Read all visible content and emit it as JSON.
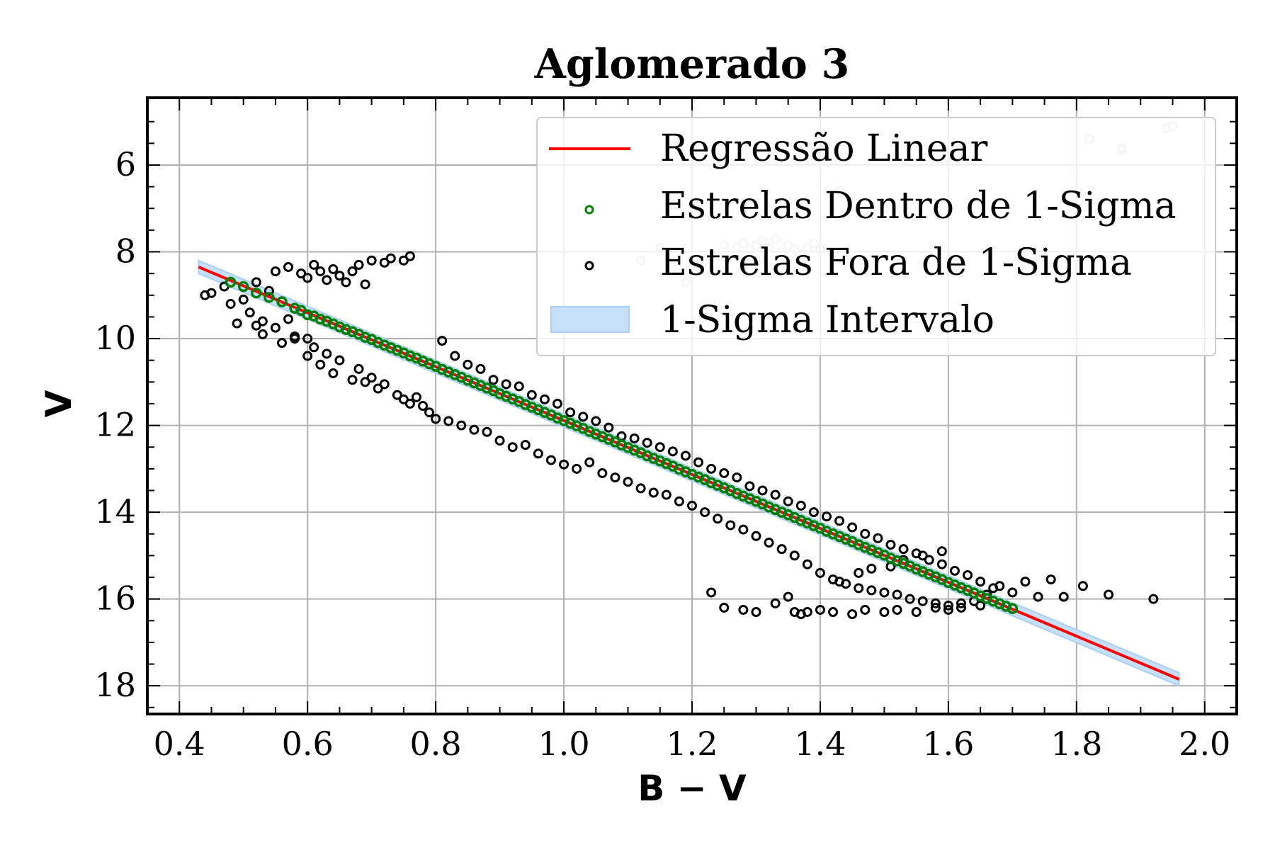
{
  "chart_data": {
    "type": "scatter",
    "title": "Aglomerado 3",
    "xlabel": "B − V",
    "ylabel": "V",
    "xlim": [
      0.35,
      2.05
    ],
    "ylim": [
      18.65,
      4.45
    ],
    "y_inverted": true,
    "grid": true,
    "xticks": [
      0.4,
      0.6,
      0.8,
      1.0,
      1.2,
      1.4,
      1.6,
      1.8,
      2.0
    ],
    "xtick_labels": [
      "0.4",
      "0.6",
      "0.8",
      "1.0",
      "1.2",
      "1.4",
      "1.6",
      "1.8",
      "2.0"
    ],
    "yticks": [
      6,
      8,
      10,
      12,
      14,
      16,
      18
    ],
    "ytick_labels": [
      "6",
      "8",
      "10",
      "12",
      "14",
      "16",
      "18"
    ],
    "legend_position": "top-right",
    "legend": [
      {
        "label": "Regressão Linear",
        "kind": "line",
        "color": "#ff0000"
      },
      {
        "label": "Estrelas Dentro de 1-Sigma",
        "kind": "marker",
        "color": "#008000"
      },
      {
        "label": "Estrelas Fora de 1-Sigma",
        "kind": "marker",
        "color": "#000000"
      },
      {
        "label": "1-Sigma Intervalo",
        "kind": "patch",
        "color": "#c6e0fa"
      }
    ],
    "regression": {
      "x": [
        0.43,
        1.96
      ],
      "y": [
        8.35,
        17.85
      ],
      "slope": 6.209,
      "intercept": 5.68
    },
    "sigma_band_half_width": 0.15,
    "series": [
      {
        "name": "Estrelas Dentro de 1-Sigma",
        "color": "#008000",
        "x": [
          0.48,
          0.5,
          0.52,
          0.54,
          0.56,
          0.58,
          0.59,
          0.6,
          0.61,
          0.62,
          0.63,
          0.64,
          0.65,
          0.66,
          0.67,
          0.68,
          0.69,
          0.7,
          0.71,
          0.72,
          0.73,
          0.74,
          0.75,
          0.76,
          0.77,
          0.78,
          0.79,
          0.8,
          0.81,
          0.82,
          0.83,
          0.84,
          0.85,
          0.86,
          0.87,
          0.88,
          0.89,
          0.9,
          0.91,
          0.92,
          0.93,
          0.94,
          0.95,
          0.96,
          0.97,
          0.98,
          0.99,
          1.0,
          1.01,
          1.02,
          1.03,
          1.04,
          1.05,
          1.06,
          1.07,
          1.08,
          1.09,
          1.1,
          1.11,
          1.12,
          1.13,
          1.14,
          1.15,
          1.16,
          1.17,
          1.18,
          1.19,
          1.2,
          1.21,
          1.22,
          1.23,
          1.24,
          1.25,
          1.26,
          1.27,
          1.28,
          1.29,
          1.3,
          1.31,
          1.32,
          1.33,
          1.34,
          1.35,
          1.36,
          1.37,
          1.38,
          1.39,
          1.4,
          1.41,
          1.42,
          1.43,
          1.44,
          1.45,
          1.46,
          1.47,
          1.48,
          1.49,
          1.5,
          1.51,
          1.52,
          1.53,
          1.54,
          1.55,
          1.56,
          1.57,
          1.58,
          1.59,
          1.6,
          1.61,
          1.62,
          1.63,
          1.64,
          1.65,
          1.66,
          1.67,
          1.68,
          1.69,
          1.7
        ],
        "y": [
          8.7,
          8.8,
          8.95,
          9.05,
          9.15,
          9.3,
          9.35,
          9.45,
          9.48,
          9.55,
          9.6,
          9.66,
          9.73,
          9.79,
          9.84,
          9.9,
          9.97,
          10.02,
          10.09,
          10.15,
          10.21,
          10.27,
          10.33,
          10.4,
          10.45,
          10.52,
          10.58,
          10.64,
          10.71,
          10.77,
          10.83,
          10.89,
          10.96,
          11.02,
          11.08,
          11.14,
          11.2,
          11.27,
          11.33,
          11.39,
          11.45,
          11.52,
          11.58,
          11.64,
          11.7,
          11.76,
          11.83,
          11.89,
          11.95,
          12.01,
          12.07,
          12.14,
          12.2,
          12.26,
          12.32,
          12.38,
          12.45,
          12.51,
          12.57,
          12.63,
          12.7,
          12.76,
          12.82,
          12.88,
          12.94,
          13.01,
          13.07,
          13.13,
          13.19,
          13.25,
          13.32,
          13.38,
          13.44,
          13.5,
          13.57,
          13.63,
          13.69,
          13.75,
          13.81,
          13.88,
          13.94,
          14.0,
          14.06,
          14.12,
          14.19,
          14.25,
          14.31,
          14.37,
          14.44,
          14.5,
          14.56,
          14.62,
          14.68,
          14.75,
          14.81,
          14.87,
          14.93,
          14.99,
          15.06,
          15.12,
          15.18,
          15.24,
          15.31,
          15.37,
          15.43,
          15.49,
          15.55,
          15.62,
          15.68,
          15.74,
          15.8,
          15.86,
          15.93,
          15.99,
          16.05,
          16.11,
          16.17,
          16.22
        ]
      },
      {
        "name": "Estrelas Fora de 1-Sigma",
        "color": "#000000",
        "x": [
          0.44,
          0.45,
          0.47,
          0.48,
          0.49,
          0.5,
          0.51,
          0.52,
          0.52,
          0.53,
          0.53,
          0.54,
          0.55,
          0.55,
          0.56,
          0.57,
          0.57,
          0.58,
          0.58,
          0.59,
          0.6,
          0.6,
          0.6,
          0.61,
          0.61,
          0.62,
          0.62,
          0.63,
          0.63,
          0.64,
          0.64,
          0.65,
          0.65,
          0.66,
          0.67,
          0.67,
          0.68,
          0.68,
          0.69,
          0.69,
          0.7,
          0.7,
          0.71,
          0.72,
          0.72,
          0.73,
          0.74,
          0.75,
          0.75,
          0.76,
          0.76,
          0.77,
          0.78,
          0.79,
          0.8,
          0.81,
          0.82,
          0.83,
          0.84,
          0.85,
          0.86,
          0.87,
          0.88,
          0.89,
          0.9,
          0.91,
          0.92,
          0.93,
          0.94,
          0.95,
          0.96,
          0.97,
          0.98,
          0.99,
          1.0,
          1.01,
          1.02,
          1.03,
          1.04,
          1.05,
          1.06,
          1.07,
          1.08,
          1.09,
          1.1,
          1.11,
          1.12,
          1.13,
          1.14,
          1.15,
          1.16,
          1.17,
          1.18,
          1.19,
          1.2,
          1.21,
          1.22,
          1.23,
          1.24,
          1.25,
          1.26,
          1.27,
          1.28,
          1.29,
          1.3,
          1.31,
          1.32,
          1.33,
          1.34,
          1.35,
          1.36,
          1.37,
          1.38,
          1.39,
          1.4,
          1.41,
          1.42,
          1.43,
          1.44,
          1.45,
          1.46,
          1.47,
          1.48,
          1.49,
          1.5,
          1.51,
          1.52,
          1.53,
          1.54,
          1.55,
          1.56,
          1.57,
          1.58,
          1.59,
          1.6,
          1.61,
          1.62,
          1.63,
          1.64,
          1.65,
          1.66,
          1.67,
          1.68,
          1.7,
          1.72,
          1.74,
          1.76,
          1.78,
          1.81,
          1.85,
          1.92,
          1.36,
          1.37,
          1.38,
          1.4,
          1.42,
          1.45,
          1.47,
          1.5,
          1.52,
          1.55,
          1.58,
          1.6,
          1.62,
          1.65,
          1.23,
          1.25,
          1.28,
          1.3,
          1.33,
          1.35,
          1.43,
          1.46,
          1.48,
          1.51,
          1.53,
          1.56,
          1.59
        ],
        "y": [
          9.0,
          8.95,
          8.8,
          9.2,
          9.65,
          9.1,
          9.4,
          9.7,
          8.7,
          9.9,
          9.6,
          8.9,
          9.75,
          8.45,
          10.1,
          9.55,
          8.35,
          9.95,
          10.0,
          8.5,
          10.4,
          8.6,
          10.0,
          8.3,
          10.2,
          8.45,
          10.6,
          8.65,
          10.35,
          8.4,
          10.8,
          8.55,
          10.5,
          8.7,
          10.95,
          8.45,
          10.7,
          8.3,
          11.0,
          8.75,
          10.9,
          8.2,
          11.15,
          8.25,
          11.05,
          8.15,
          11.3,
          8.2,
          11.4,
          8.1,
          11.5,
          11.35,
          11.55,
          11.7,
          11.85,
          10.05,
          11.9,
          10.4,
          12.0,
          10.6,
          12.1,
          10.7,
          12.15,
          10.95,
          12.35,
          11.05,
          12.5,
          11.1,
          12.45,
          11.3,
          12.65,
          11.4,
          12.8,
          11.5,
          12.9,
          11.7,
          13.0,
          11.8,
          12.85,
          11.9,
          13.1,
          12.05,
          13.2,
          12.25,
          13.3,
          12.3,
          13.45,
          12.4,
          13.55,
          12.5,
          13.6,
          12.6,
          13.75,
          12.7,
          13.85,
          12.85,
          14.0,
          13.0,
          14.15,
          13.1,
          14.3,
          13.2,
          14.4,
          13.4,
          14.55,
          13.5,
          14.7,
          13.6,
          14.85,
          13.75,
          15.0,
          13.85,
          15.2,
          14.0,
          15.4,
          14.1,
          15.55,
          14.2,
          15.65,
          14.35,
          15.75,
          14.5,
          15.8,
          14.6,
          15.85,
          14.75,
          15.9,
          14.85,
          16.0,
          14.95,
          16.05,
          15.1,
          16.1,
          15.2,
          16.15,
          15.35,
          16.2,
          15.45,
          16.05,
          15.6,
          15.9,
          15.75,
          15.7,
          15.85,
          15.6,
          15.95,
          15.55,
          15.95,
          15.7,
          15.9,
          16.0,
          16.3,
          16.35,
          16.3,
          16.25,
          16.3,
          16.35,
          16.25,
          16.3,
          16.25,
          16.3,
          16.2,
          16.25,
          16.1,
          16.15,
          15.85,
          16.2,
          16.25,
          16.3,
          16.1,
          15.95,
          15.6,
          15.4,
          15.3,
          15.25,
          15.1,
          15.0,
          14.9
        ]
      },
      {
        "name": "background stars (grey, behind legend)",
        "color": "#cccccc",
        "x": [
          1.82,
          1.87,
          1.87,
          1.94,
          1.95,
          1.43,
          1.47,
          1.5,
          1.25,
          1.27,
          1.28,
          1.29,
          1.3,
          1.31,
          1.32,
          1.33,
          1.34,
          1.35,
          1.36,
          1.37,
          1.38,
          1.39,
          1.4,
          1.3,
          1.32,
          1.35,
          1.28,
          1.24,
          1.22,
          1.19,
          1.12,
          1.15,
          1.42
        ],
        "y": [
          5.4,
          5.6,
          5.65,
          5.15,
          5.1,
          6.6,
          7.05,
          7.0,
          7.85,
          7.9,
          7.8,
          7.95,
          7.85,
          7.75,
          7.9,
          7.7,
          8.0,
          7.85,
          7.95,
          8.05,
          7.9,
          7.8,
          7.95,
          8.2,
          8.35,
          8.3,
          8.45,
          8.1,
          8.2,
          8.7,
          8.2,
          7.9,
          8.05
        ]
      }
    ]
  }
}
